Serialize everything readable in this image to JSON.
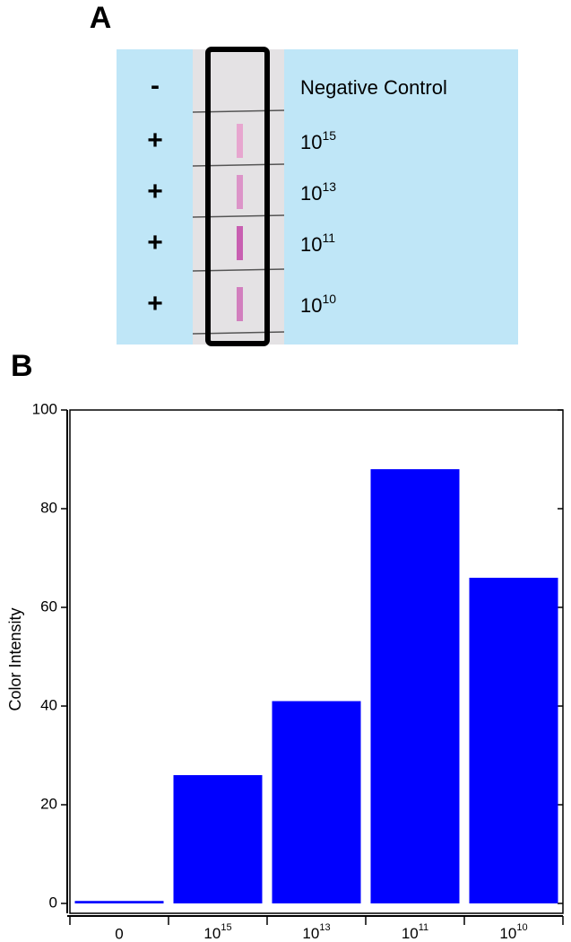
{
  "panel_a": {
    "label": "A",
    "rows": [
      {
        "sign": "-",
        "label": "Negative Control"
      },
      {
        "sign": "+",
        "label": {
          "base": "10",
          "sup": "15"
        }
      },
      {
        "sign": "+",
        "label": {
          "base": "10",
          "sup": "13"
        }
      },
      {
        "sign": "+",
        "label": {
          "base": "10",
          "sup": "11"
        }
      },
      {
        "sign": "+",
        "label": {
          "base": "10",
          "sup": "10"
        }
      }
    ]
  },
  "chart_data": {
    "type": "bar",
    "panel_label": "B",
    "y_label": "Color Intensity",
    "categories": [
      "0",
      {
        "base": "10",
        "sup": "15"
      },
      {
        "base": "10",
        "sup": "13"
      },
      {
        "base": "10",
        "sup": "11"
      },
      {
        "base": "10",
        "sup": "10"
      }
    ],
    "values": [
      0.5,
      26,
      41,
      88,
      66
    ],
    "color": "#0000ff",
    "ylim": [
      -2,
      100
    ],
    "yticks": [
      0,
      20,
      40,
      60,
      80,
      100
    ]
  }
}
